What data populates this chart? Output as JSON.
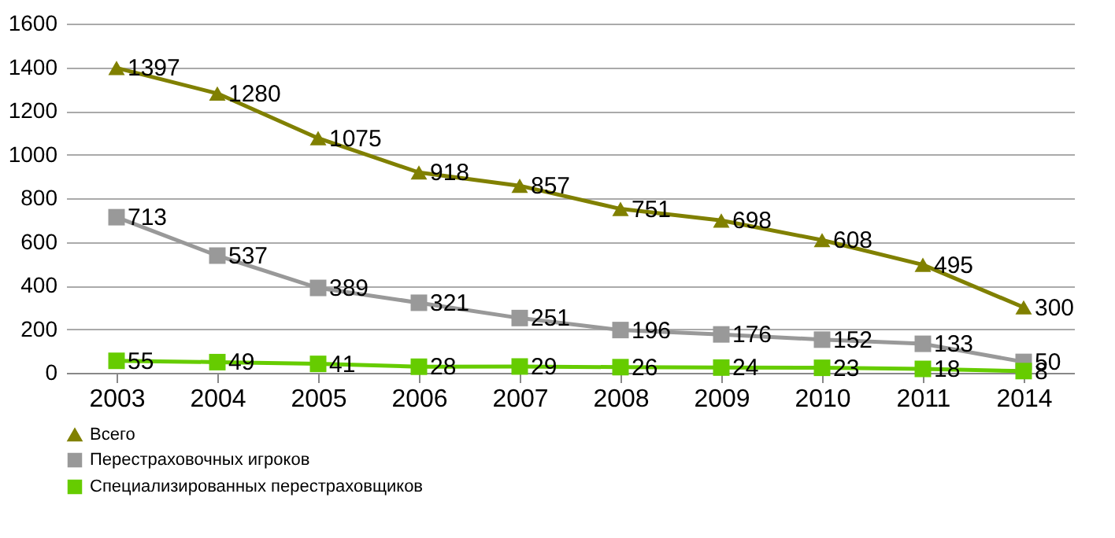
{
  "chart_data": {
    "type": "line",
    "categories": [
      "2003",
      "2004",
      "2005",
      "2006",
      "2007",
      "2008",
      "2009",
      "2010",
      "2011",
      "2014"
    ],
    "series": [
      {
        "name": "Всего",
        "color": "#808000",
        "marker": "triangle",
        "values": [
          1397,
          1280,
          1075,
          918,
          857,
          751,
          698,
          608,
          495,
          300
        ]
      },
      {
        "name": "Перестраховочных игроков",
        "color": "#999999",
        "marker": "square",
        "values": [
          713,
          537,
          389,
          321,
          251,
          196,
          176,
          152,
          133,
          50
        ]
      },
      {
        "name": "Специализированных перестраховщиков",
        "color": "#66cc00",
        "marker": "square",
        "values": [
          55,
          49,
          41,
          28,
          29,
          26,
          24,
          23,
          18,
          8
        ]
      }
    ],
    "ylim": [
      0,
      1600
    ],
    "yticks": [
      0,
      200,
      400,
      600,
      800,
      1000,
      1200,
      1400,
      1600
    ],
    "grid": "y",
    "legend": "bottom",
    "data_labels": true
  }
}
